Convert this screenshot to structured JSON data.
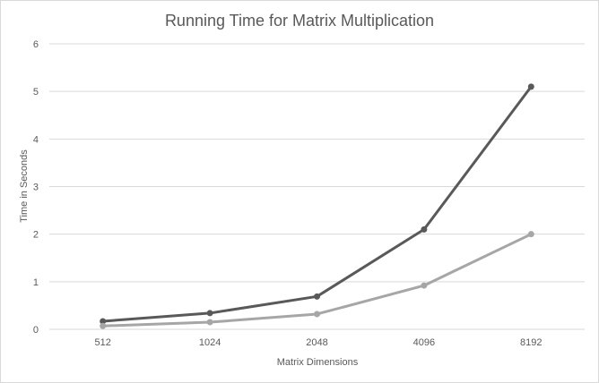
{
  "chart_data": {
    "type": "line",
    "title": "Running Time for Matrix Multiplication",
    "xlabel": "Matrix Dimensions",
    "ylabel": "Time in Seconds",
    "categories": [
      "512",
      "1024",
      "2048",
      "4096",
      "8192"
    ],
    "ylim": [
      0,
      6
    ],
    "yticks": [
      "0",
      "1",
      "2",
      "3",
      "4",
      "5",
      "6"
    ],
    "grid": true,
    "legend": "none",
    "series": [
      {
        "values": [
          0.17,
          0.34,
          0.69,
          2.1,
          5.1
        ],
        "color": "#595959"
      },
      {
        "values": [
          0.07,
          0.15,
          0.32,
          0.92,
          2.0
        ],
        "color": "#a6a6a6"
      }
    ]
  }
}
